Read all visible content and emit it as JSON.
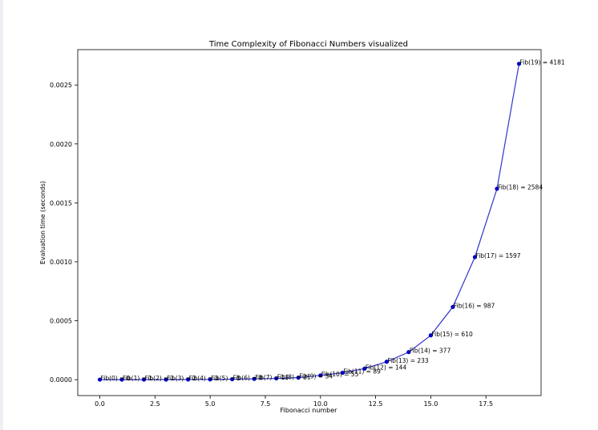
{
  "chart_data": {
    "type": "line",
    "title": "Time Complexity of Fibonacci Numbers visualized",
    "xlabel": "Fibonacci number",
    "ylabel": "Evaluation time (seconds)",
    "xlim": [
      -1,
      20
    ],
    "ylim": [
      -0.000135,
      0.0028
    ],
    "xticks": [
      0.0,
      2.5,
      5.0,
      7.5,
      10.0,
      12.5,
      15.0,
      17.5
    ],
    "xtick_labels": [
      "0.0",
      "2.5",
      "5.0",
      "7.5",
      "10.0",
      "12.5",
      "15.0",
      "17.5"
    ],
    "yticks": [
      0.0,
      0.0005,
      0.001,
      0.0015,
      0.002,
      0.0025
    ],
    "ytick_labels": [
      "0.0000",
      "0.0005",
      "0.0010",
      "0.0015",
      "0.0020",
      "0.0025"
    ],
    "grid": false,
    "line_color": "#3333cc",
    "marker_color": "#0000cc",
    "series": [
      {
        "x": [
          0,
          1,
          2,
          3,
          4,
          5,
          6,
          7,
          8,
          9,
          10,
          11,
          12,
          13,
          14,
          15,
          16,
          17,
          18,
          19
        ],
        "values": [
          3e-07,
          5e-07,
          8e-07,
          1e-06,
          1.5e-06,
          2.5e-06,
          4e-06,
          6.5e-06,
          1.05e-05,
          1.7e-05,
          3.6e-05,
          5.8e-05,
          9.4e-05,
          0.000152,
          0.000234,
          0.000376,
          0.000617,
          0.00104,
          0.00162,
          0.00268
        ],
        "labels": [
          "Fib(0) = 0",
          "Fib(1) = 1",
          "Fib(2) = 1",
          "Fib(3) = 2",
          "Fib(4) = 3",
          "Fib(5) = 5",
          "Fib(6) = 8",
          "Fib(7) = 13",
          "Fib(8) = 21",
          "Fib(9) = 34",
          "Fib(10) = 55",
          "Fib(11) = 89",
          "Fib(12) = 144",
          "Fib(13) = 233",
          "Fib(14) = 377",
          "Fib(15) = 610",
          "Fib(16) = 987",
          "Fib(17) = 1597",
          "Fib(18) = 2584",
          "Fib(19) = 4181"
        ]
      }
    ]
  }
}
